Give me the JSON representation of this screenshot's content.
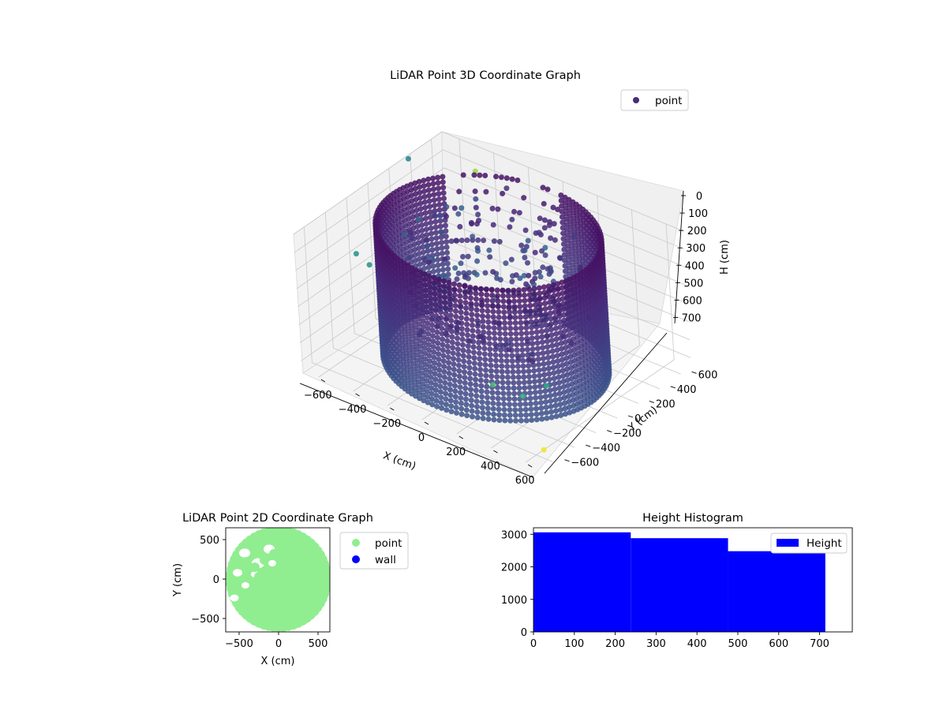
{
  "chart_data": [
    {
      "type": "scatter",
      "projection": "3d",
      "title": "LiDAR Point 3D Coordinate Graph",
      "xlabel": "X (cm)",
      "ylabel": "Y (cm)",
      "zlabel": "H (cm)",
      "xlim": [
        -700,
        700
      ],
      "ylim": [
        -700,
        700
      ],
      "zlim": [
        0,
        750
      ],
      "z_inverted": true,
      "x_ticks": [
        "−600",
        "−400",
        "−200",
        "0",
        "200",
        "400",
        "600"
      ],
      "y_ticks": [
        "−600",
        "−400",
        "−200",
        "0",
        "200",
        "400",
        "600"
      ],
      "z_ticks": [
        "0",
        "100",
        "200",
        "300",
        "400",
        "500",
        "600",
        "700"
      ],
      "legend": [
        {
          "name": "point",
          "color": "#472d7b"
        }
      ],
      "legend_placement": "top-right",
      "colormap": "viridis",
      "grid": true,
      "structure": {
        "wall_radius": 580,
        "wall_height_range": [
          0,
          720
        ],
        "scattered_outliers": 9
      }
    },
    {
      "type": "scatter",
      "title": "LiDAR Point 2D Coordinate Graph",
      "xlabel": "X (cm)",
      "ylabel": "Y (cm)",
      "xlim": [
        -670,
        650
      ],
      "ylim": [
        -670,
        650
      ],
      "x_ticks": [
        "−500",
        "0",
        "500"
      ],
      "y_ticks": [
        "500",
        "0",
        "−500"
      ],
      "series": [
        {
          "name": "point",
          "color": "#90ee90"
        },
        {
          "name": "wall",
          "color": "#0000ff"
        }
      ],
      "legend_placement": "outside-right",
      "structure": {
        "disc_radius": 600
      }
    },
    {
      "type": "bar",
      "subtype": "histogram",
      "title": "Height Histogram",
      "xlim": [
        0,
        780
      ],
      "ylim": [
        0,
        3200
      ],
      "x_ticks": [
        "0",
        "100",
        "200",
        "300",
        "400",
        "500",
        "600",
        "700"
      ],
      "y_ticks": [
        "0",
        "1000",
        "2000",
        "3000"
      ],
      "bins": [
        {
          "start": 0,
          "end": 238,
          "count": 3060
        },
        {
          "start": 238,
          "end": 476,
          "count": 2880
        },
        {
          "start": 476,
          "end": 714,
          "count": 2480
        }
      ],
      "series": [
        {
          "name": "Height",
          "color": "#0000ff"
        }
      ],
      "legend_placement": "top-right"
    }
  ]
}
